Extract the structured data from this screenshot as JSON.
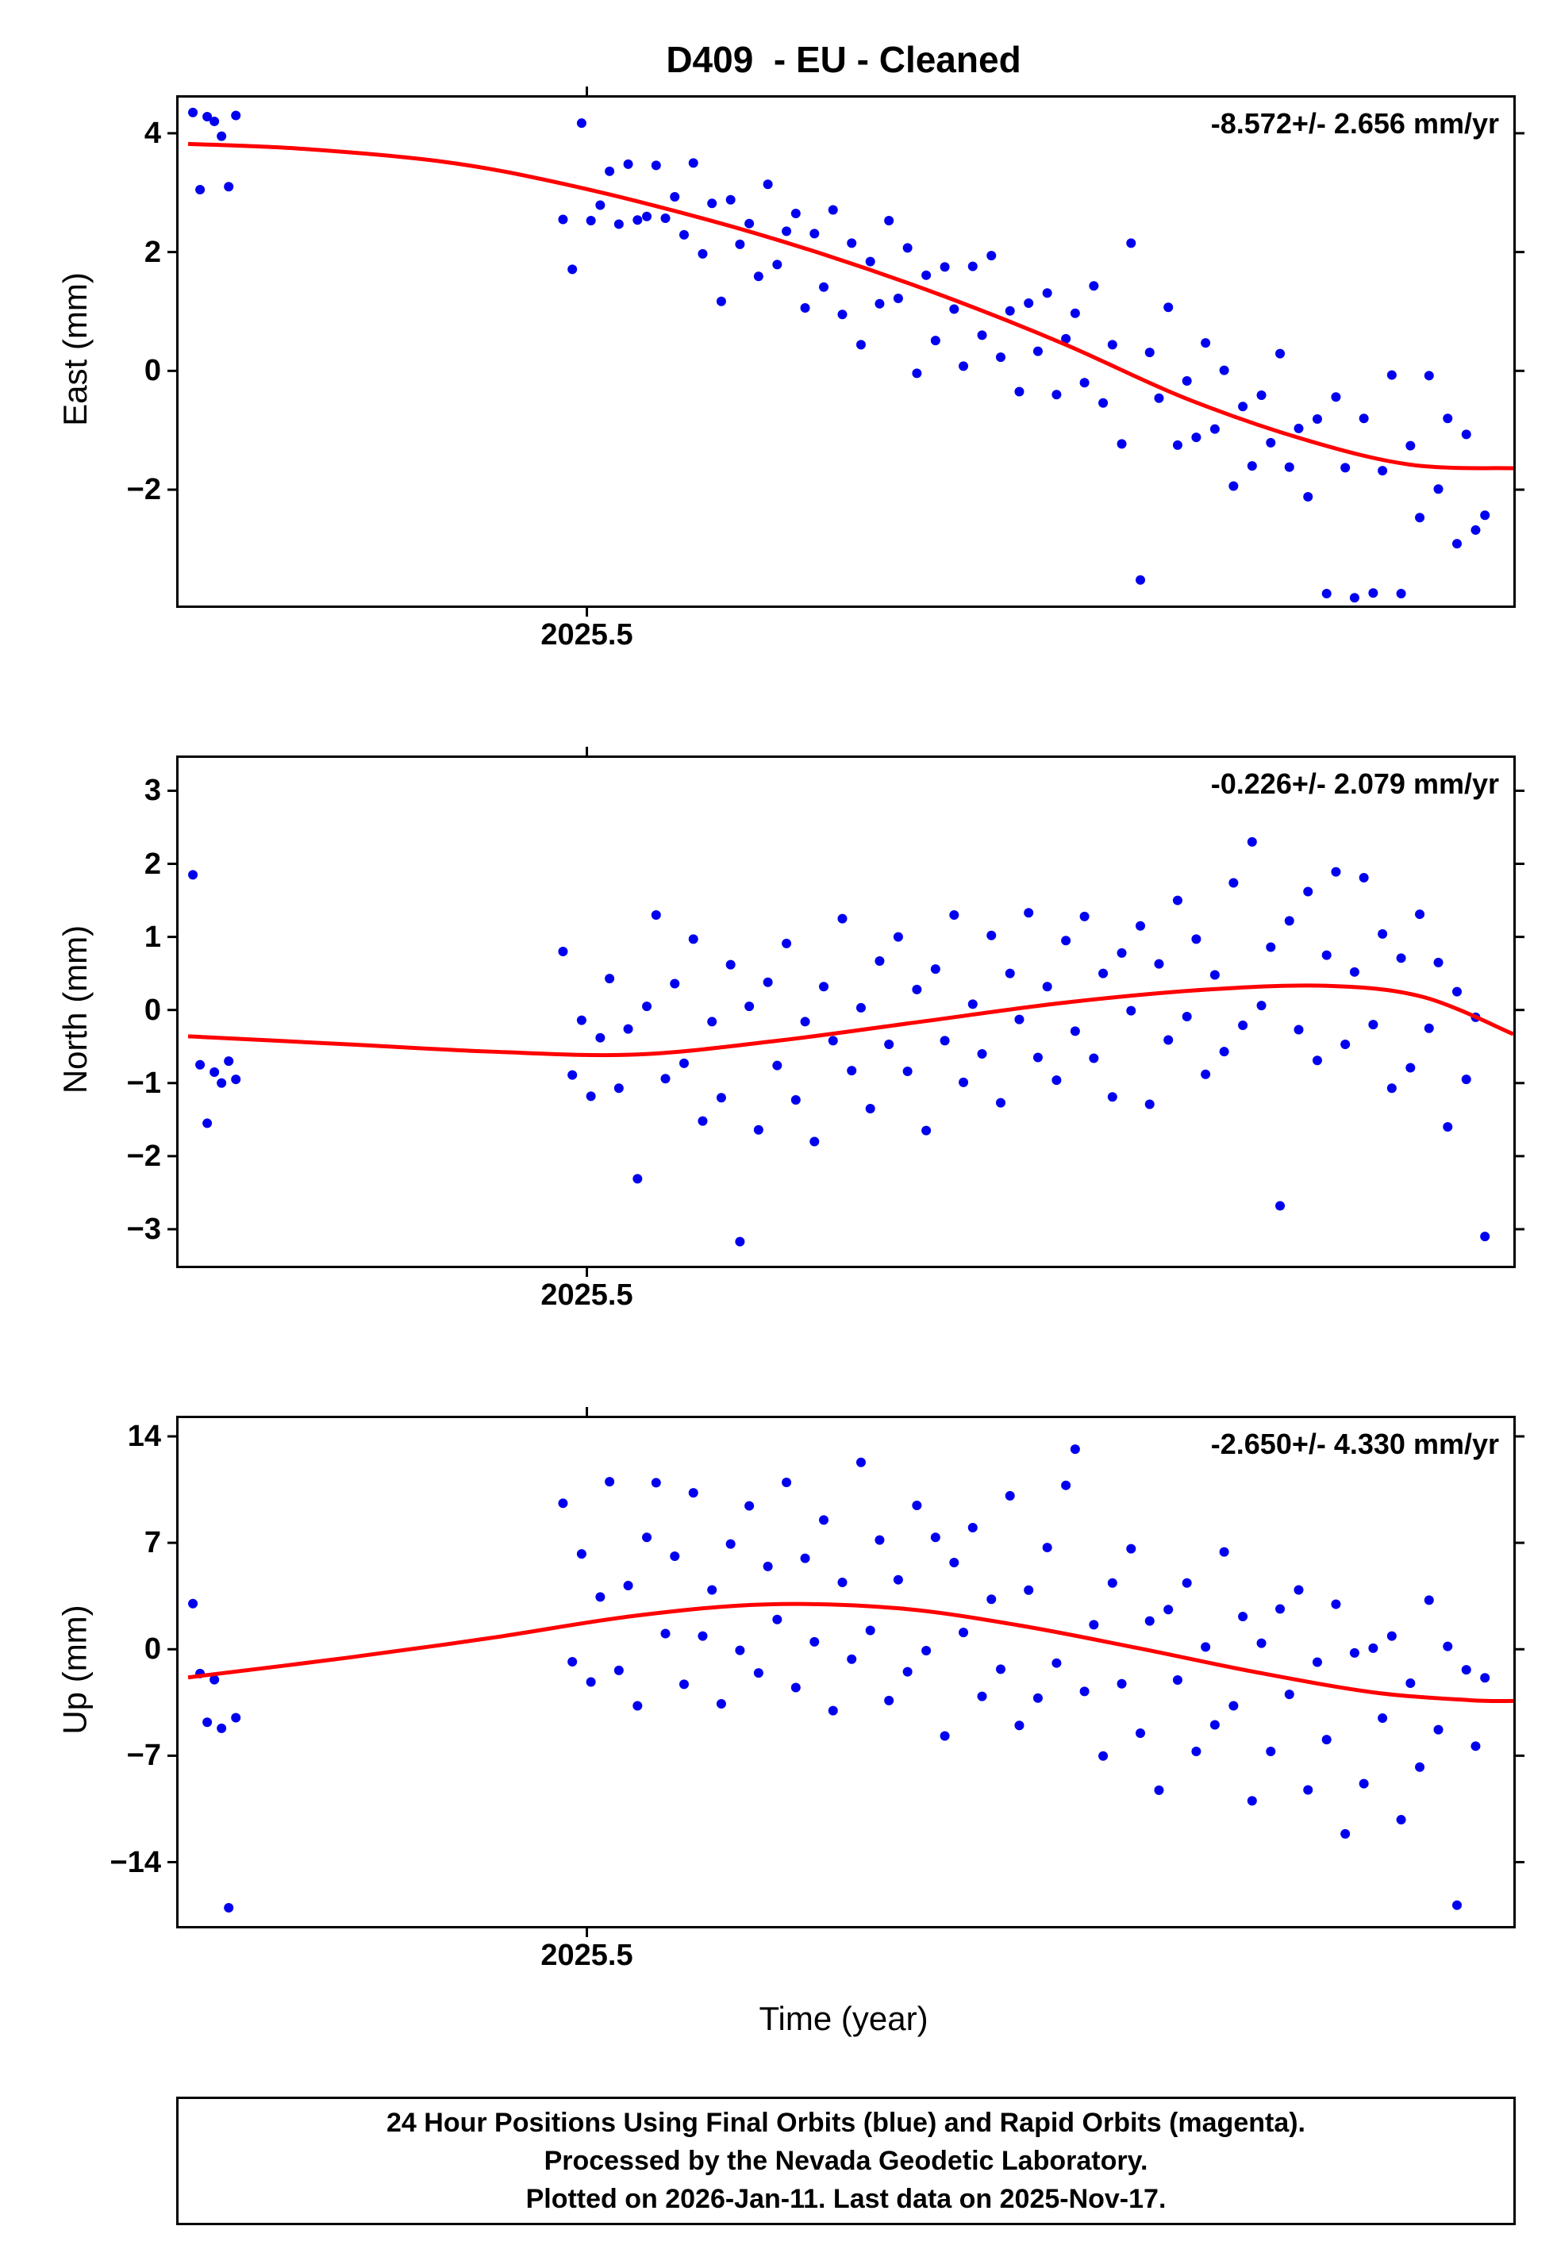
{
  "title": "D409  - EU - Cleaned",
  "xlabel": "Time (year)",
  "caption": {
    "line1": "24 Hour Positions Using Final Orbits (blue) and Rapid Orbits (magenta).",
    "line2": "Processed by the Nevada Geodetic Laboratory.",
    "line3": "Plotted on 2026-Jan-11. Last data on 2025-Nov-17."
  },
  "chart_data": {
    "type": "scatter",
    "point_color": "#0000ee",
    "trend_color": "#ff0000",
    "xlim": [
      2025.329,
      2025.888
    ],
    "xticks": [
      {
        "value": 2025.5,
        "label": "2025.5"
      }
    ],
    "x": [
      2025.335,
      2025.338,
      2025.341,
      2025.344,
      2025.347,
      2025.35,
      2025.353,
      2025.49,
      2025.4939,
      2025.4978,
      2025.5017,
      2025.5056,
      2025.5095,
      2025.5134,
      2025.5173,
      2025.5212,
      2025.5251,
      2025.529,
      2025.5329,
      2025.5368,
      2025.5407,
      2025.5446,
      2025.5485,
      2025.5524,
      2025.5563,
      2025.5602,
      2025.5641,
      2025.568,
      2025.5719,
      2025.5758,
      2025.5797,
      2025.5836,
      2025.5875,
      2025.5914,
      2025.5953,
      2025.5992,
      2025.6031,
      2025.607,
      2025.6109,
      2025.6148,
      2025.6187,
      2025.6226,
      2025.6265,
      2025.6304,
      2025.6343,
      2025.6382,
      2025.6421,
      2025.646,
      2025.6499,
      2025.6538,
      2025.6577,
      2025.6616,
      2025.6655,
      2025.6694,
      2025.6733,
      2025.6772,
      2025.6811,
      2025.685,
      2025.6889,
      2025.6928,
      2025.6967,
      2025.7006,
      2025.7045,
      2025.7084,
      2025.7123,
      2025.7162,
      2025.7201,
      2025.724,
      2025.7279,
      2025.7318,
      2025.7357,
      2025.7396,
      2025.7435,
      2025.7474,
      2025.7513,
      2025.7552,
      2025.7591,
      2025.763,
      2025.7669,
      2025.7708,
      2025.7747,
      2025.7786,
      2025.7825,
      2025.7864,
      2025.7903,
      2025.7942,
      2025.7981,
      2025.802,
      2025.8059,
      2025.8098,
      2025.8137,
      2025.8176,
      2025.8215,
      2025.8254,
      2025.8293,
      2025.8332,
      2025.8371,
      2025.841,
      2025.8449,
      2025.8488,
      2025.8527,
      2025.8566,
      2025.8605,
      2025.8644,
      2025.8683,
      2025.8722,
      2025.8761
    ],
    "panels": [
      {
        "id": "east",
        "ylabel": "East (mm)",
        "rate_label": "-8.572+/- 2.656 mm/yr",
        "ylim": [
          -3.95,
          4.6
        ],
        "yticks": [
          {
            "value": 4,
            "label": "4"
          },
          {
            "value": 2,
            "label": "2"
          },
          {
            "value": 0,
            "label": "0"
          },
          {
            "value": -2,
            "label": "−2"
          }
        ],
        "values": [
          4.35,
          3.05,
          4.28,
          4.2,
          3.95,
          3.1,
          4.3,
          2.55,
          1.71,
          4.17,
          2.53,
          2.79,
          3.36,
          2.47,
          3.48,
          2.54,
          2.6,
          3.46,
          2.57,
          2.93,
          2.29,
          3.5,
          1.97,
          2.82,
          1.17,
          2.88,
          2.13,
          2.48,
          1.59,
          3.14,
          1.79,
          2.35,
          2.65,
          1.06,
          2.31,
          1.41,
          2.71,
          0.95,
          2.15,
          0.44,
          1.84,
          1.13,
          2.53,
          1.22,
          2.07,
          -0.04,
          1.61,
          0.51,
          1.75,
          1.04,
          0.08,
          1.76,
          0.6,
          1.94,
          0.23,
          1.01,
          -0.35,
          1.14,
          0.33,
          1.31,
          -0.4,
          0.54,
          0.97,
          -0.2,
          1.43,
          -0.54,
          0.44,
          -1.23,
          2.15,
          -3.52,
          0.31,
          -0.46,
          1.07,
          -1.25,
          -0.17,
          -1.12,
          0.47,
          -0.98,
          0.01,
          -1.94,
          -0.6,
          -1.6,
          -0.41,
          -1.21,
          0.29,
          -1.62,
          -0.97,
          -2.12,
          -0.81,
          -3.75,
          -0.44,
          -1.63,
          -3.82,
          -0.8,
          -3.74,
          -1.68,
          -0.07,
          -3.75,
          -1.26,
          -2.47,
          -0.08,
          -1.99,
          -0.8,
          -2.91,
          -1.07,
          -2.68,
          -2.43
        ],
        "trend": [
          [
            2025.333,
            3.82
          ],
          [
            2025.38,
            3.74
          ],
          [
            2025.44,
            3.52
          ],
          [
            2025.49,
            3.15
          ],
          [
            2025.55,
            2.55
          ],
          [
            2025.6,
            1.95
          ],
          [
            2025.65,
            1.25
          ],
          [
            2025.7,
            0.45
          ],
          [
            2025.75,
            -0.45
          ],
          [
            2025.8,
            -1.15
          ],
          [
            2025.845,
            -1.58
          ],
          [
            2025.888,
            -1.64
          ]
        ]
      },
      {
        "id": "north",
        "ylabel": "North (mm)",
        "rate_label": "-0.226+/- 2.079 mm/yr",
        "ylim": [
          -3.5,
          3.45
        ],
        "yticks": [
          {
            "value": 3,
            "label": "3"
          },
          {
            "value": 2,
            "label": "2"
          },
          {
            "value": 1,
            "label": "1"
          },
          {
            "value": 0,
            "label": "0"
          },
          {
            "value": -1,
            "label": "−1"
          },
          {
            "value": -2,
            "label": "−2"
          },
          {
            "value": -3,
            "label": "−3"
          }
        ],
        "values": [
          1.85,
          -0.75,
          -1.55,
          -0.85,
          -1.0,
          -0.7,
          -0.95,
          0.8,
          -0.89,
          -0.14,
          -1.18,
          -0.38,
          0.43,
          -1.07,
          -0.26,
          -2.31,
          0.05,
          1.3,
          -0.94,
          0.36,
          -0.73,
          0.97,
          -1.52,
          -0.16,
          -1.2,
          0.62,
          -3.17,
          0.05,
          -1.64,
          0.38,
          -0.76,
          0.91,
          -1.23,
          -0.16,
          -1.8,
          0.32,
          -0.42,
          1.25,
          -0.83,
          0.03,
          -1.35,
          0.67,
          -0.47,
          1.0,
          -0.84,
          0.28,
          -1.65,
          0.56,
          -0.42,
          1.3,
          -0.99,
          0.08,
          -0.6,
          1.02,
          -1.27,
          0.5,
          -0.13,
          1.33,
          -0.65,
          0.32,
          -0.96,
          0.95,
          -0.29,
          1.28,
          -0.66,
          0.5,
          -1.19,
          0.78,
          -0.01,
          1.15,
          -1.29,
          0.63,
          -0.41,
          1.5,
          -0.09,
          0.97,
          -0.88,
          0.48,
          -0.57,
          1.74,
          -0.21,
          2.3,
          0.06,
          0.86,
          -2.68,
          1.22,
          -0.27,
          1.62,
          -0.69,
          0.75,
          1.89,
          -0.47,
          0.52,
          1.81,
          -0.2,
          1.04,
          -1.07,
          0.71,
          -0.79,
          1.31,
          -0.25,
          0.65,
          -1.6,
          0.25,
          -0.95,
          -0.1,
          -3.1
        ],
        "trend": [
          [
            2025.333,
            -0.36
          ],
          [
            2025.4,
            -0.47
          ],
          [
            2025.46,
            -0.57
          ],
          [
            2025.52,
            -0.61
          ],
          [
            2025.58,
            -0.42
          ],
          [
            2025.64,
            -0.16
          ],
          [
            2025.7,
            0.1
          ],
          [
            2025.76,
            0.28
          ],
          [
            2025.81,
            0.33
          ],
          [
            2025.85,
            0.18
          ],
          [
            2025.888,
            -0.33
          ]
        ]
      },
      {
        "id": "up",
        "ylabel": "Up (mm)",
        "rate_label": "-2.650+/- 4.330 mm/yr",
        "ylim": [
          -18.2,
          15.2
        ],
        "yticks": [
          {
            "value": 14,
            "label": "14"
          },
          {
            "value": 7,
            "label": "7"
          },
          {
            "value": 0,
            "label": "0"
          },
          {
            "value": -7,
            "label": "−7"
          },
          {
            "value": -14,
            "label": "−14"
          }
        ],
        "values": [
          3.0,
          -1.6,
          -4.8,
          -2.0,
          -5.2,
          -17.0,
          -4.5,
          9.6,
          -0.82,
          6.27,
          -2.15,
          3.44,
          11.02,
          -1.39,
          4.19,
          -3.72,
          7.36,
          10.95,
          1.03,
          6.12,
          -2.3,
          10.29,
          0.87,
          3.9,
          -3.59,
          6.92,
          -0.07,
          9.43,
          -1.56,
          5.45,
          1.96,
          10.97,
          -2.52,
          5.98,
          0.49,
          8.5,
          -4.04,
          4.4,
          -0.65,
          12.29,
          1.24,
          7.18,
          -3.37,
          4.57,
          -1.48,
          9.46,
          -0.09,
          7.36,
          -5.7,
          5.7,
          1.1,
          8.0,
          -3.1,
          3.29,
          -1.31,
          10.09,
          -5.01,
          3.89,
          -3.21,
          6.69,
          -0.91,
          10.78,
          13.16,
          -2.77,
          1.61,
          -7.02,
          4.36,
          -2.27,
          6.61,
          -5.52,
          1.86,
          -9.27,
          2.61,
          -2.02,
          4.36,
          -6.72,
          0.15,
          -4.97,
          6.4,
          -3.72,
          2.15,
          -9.97,
          0.4,
          -6.72,
          2.65,
          -2.97,
          3.9,
          -9.25,
          -0.85,
          -5.94,
          2.96,
          -12.14,
          -0.24,
          -8.84,
          0.07,
          -4.53,
          0.87,
          -11.21,
          -2.23,
          -7.75,
          3.23,
          -5.29,
          0.19,
          -16.83,
          -1.35,
          -6.37,
          -1.88
        ],
        "trend": [
          [
            2025.333,
            -1.85
          ],
          [
            2025.4,
            -0.55
          ],
          [
            2025.46,
            0.75
          ],
          [
            2025.52,
            2.2
          ],
          [
            2025.575,
            2.95
          ],
          [
            2025.63,
            2.7
          ],
          [
            2025.68,
            1.6
          ],
          [
            2025.73,
            0.1
          ],
          [
            2025.78,
            -1.5
          ],
          [
            2025.83,
            -2.85
          ],
          [
            2025.87,
            -3.35
          ],
          [
            2025.888,
            -3.4
          ]
        ]
      }
    ]
  }
}
